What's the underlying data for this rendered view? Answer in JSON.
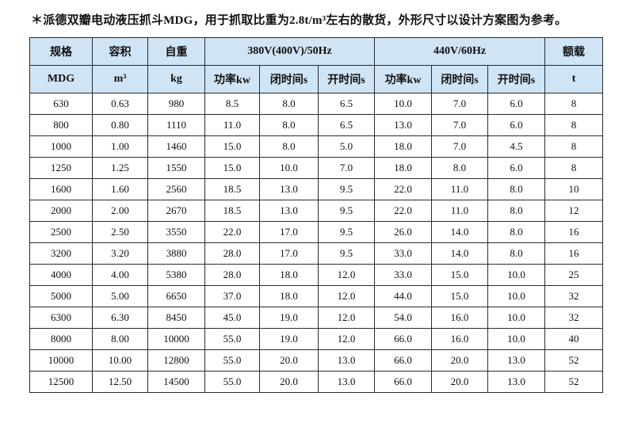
{
  "page": {
    "note": "＊派德双瓣电动液压抓斗MDG，用于抓取比重为2.8t/m³左右的散货，外形尺寸以设计方案图为参考。"
  },
  "colors": {
    "header_bg": "#cfe4f4",
    "border": "#2b2b2b",
    "text": "#111111"
  },
  "table": {
    "group_headers": {
      "spec": "规格",
      "capacity": "容积",
      "weight": "自重",
      "group_380": "380V(400V)/50Hz",
      "group_440": "440V/60Hz",
      "rated_load": "额载"
    },
    "unit_headers": [
      "MDG",
      "m³",
      "kg",
      "功率kw",
      "闭时间s",
      "开时间s",
      "功率kw",
      "闭时间s",
      "开时间s",
      "t"
    ],
    "rows": [
      [
        "630",
        "0.63",
        "980",
        "8.5",
        "8.0",
        "6.5",
        "10.0",
        "7.0",
        "6.0",
        "8"
      ],
      [
        "800",
        "0.80",
        "1110",
        "11.0",
        "8.0",
        "6.5",
        "13.0",
        "7.0",
        "6.0",
        "8"
      ],
      [
        "1000",
        "1.00",
        "1460",
        "15.0",
        "8.0",
        "5.0",
        "18.0",
        "7.0",
        "4.5",
        "8"
      ],
      [
        "1250",
        "1.25",
        "1550",
        "15.0",
        "10.0",
        "7.0",
        "18.0",
        "8.0",
        "6.0",
        "8"
      ],
      [
        "1600",
        "1.60",
        "2560",
        "18.5",
        "13.0",
        "9.5",
        "22.0",
        "11.0",
        "8.0",
        "10"
      ],
      [
        "2000",
        "2.00",
        "2670",
        "18.5",
        "13.0",
        "9.5",
        "22.0",
        "11.0",
        "8.0",
        "12"
      ],
      [
        "2500",
        "2.50",
        "3550",
        "22.0",
        "17.0",
        "9.5",
        "26.0",
        "14.0",
        "8.0",
        "16"
      ],
      [
        "3200",
        "3.20",
        "3880",
        "28.0",
        "17.0",
        "9.5",
        "33.0",
        "14.0",
        "8.0",
        "16"
      ],
      [
        "4000",
        "4.00",
        "5380",
        "28.0",
        "18.0",
        "12.0",
        "33.0",
        "15.0",
        "10.0",
        "25"
      ],
      [
        "5000",
        "5.00",
        "6650",
        "37.0",
        "18.0",
        "12.0",
        "44.0",
        "15.0",
        "10.0",
        "32"
      ],
      [
        "6300",
        "6.30",
        "8450",
        "45.0",
        "19.0",
        "12.0",
        "54.0",
        "16.0",
        "10.0",
        "32"
      ],
      [
        "8000",
        "8.00",
        "10000",
        "55.0",
        "19.0",
        "12.0",
        "66.0",
        "16.0",
        "10.0",
        "40"
      ],
      [
        "10000",
        "10.00",
        "12800",
        "55.0",
        "20.0",
        "13.0",
        "66.0",
        "20.0",
        "13.0",
        "52"
      ],
      [
        "12500",
        "12.50",
        "14500",
        "55.0",
        "20.0",
        "13.0",
        "66.0",
        "20.0",
        "13.0",
        "52"
      ]
    ]
  }
}
